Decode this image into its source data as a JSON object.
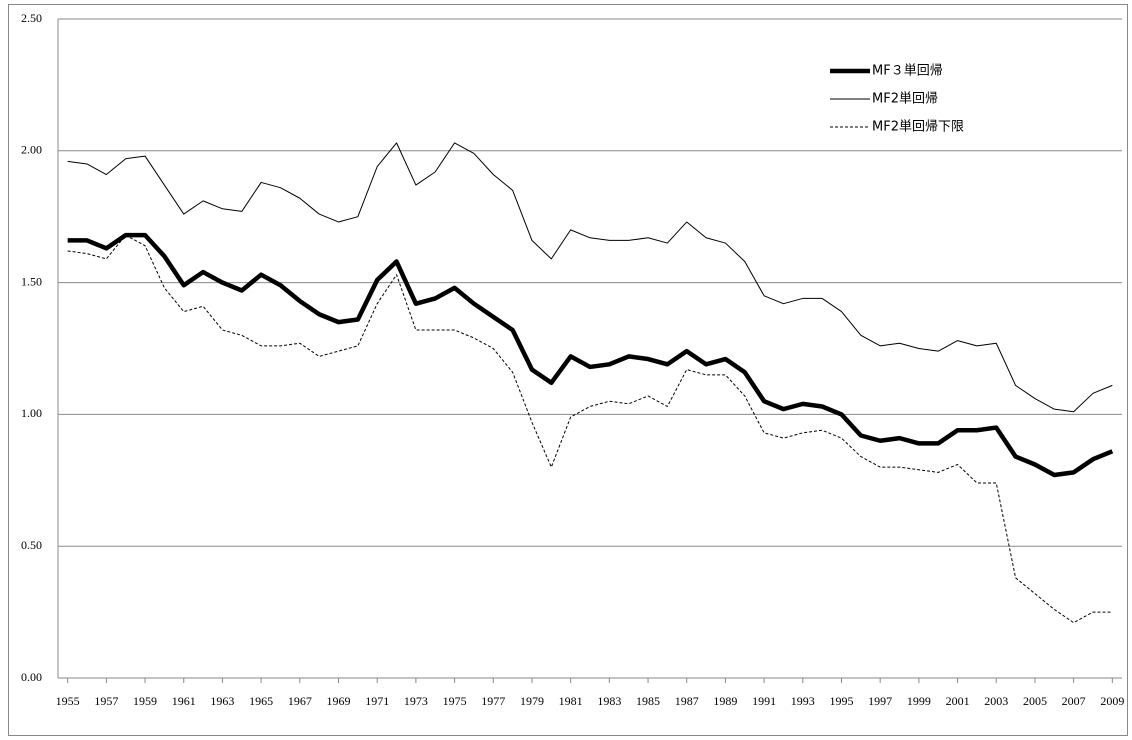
{
  "chart_data": {
    "type": "line",
    "x": [
      1955,
      1956,
      1957,
      1958,
      1959,
      1960,
      1961,
      1962,
      1963,
      1964,
      1965,
      1966,
      1967,
      1968,
      1969,
      1970,
      1971,
      1972,
      1973,
      1974,
      1975,
      1976,
      1977,
      1978,
      1979,
      1980,
      1981,
      1982,
      1983,
      1984,
      1985,
      1986,
      1987,
      1988,
      1989,
      1990,
      1991,
      1992,
      1993,
      1994,
      1995,
      1996,
      1997,
      1998,
      1999,
      2000,
      2001,
      2002,
      2003,
      2004,
      2005,
      2006,
      2007,
      2008,
      2009
    ],
    "series": [
      {
        "name": "MF３単回帰",
        "color": "#000000",
        "style": "thick",
        "values": [
          1.66,
          1.66,
          1.63,
          1.68,
          1.68,
          1.6,
          1.49,
          1.54,
          1.5,
          1.47,
          1.53,
          1.49,
          1.43,
          1.38,
          1.35,
          1.36,
          1.51,
          1.58,
          1.42,
          1.44,
          1.48,
          1.42,
          1.37,
          1.32,
          1.17,
          1.12,
          1.22,
          1.18,
          1.19,
          1.22,
          1.21,
          1.19,
          1.24,
          1.19,
          1.21,
          1.16,
          1.05,
          1.02,
          1.04,
          1.03,
          1.0,
          0.92,
          0.9,
          0.91,
          0.89,
          0.89,
          0.94,
          0.94,
          0.95,
          0.84,
          0.81,
          0.77,
          0.78,
          0.83,
          0.86
        ]
      },
      {
        "name": "MF2単回帰",
        "color": "#000000",
        "style": "solid",
        "values": [
          1.96,
          1.95,
          1.91,
          1.97,
          1.98,
          1.87,
          1.76,
          1.81,
          1.78,
          1.77,
          1.88,
          1.86,
          1.82,
          1.76,
          1.73,
          1.75,
          1.94,
          2.03,
          1.87,
          1.92,
          2.03,
          1.99,
          1.91,
          1.85,
          1.66,
          1.59,
          1.7,
          1.67,
          1.66,
          1.66,
          1.67,
          1.65,
          1.73,
          1.67,
          1.65,
          1.58,
          1.45,
          1.42,
          1.44,
          1.44,
          1.39,
          1.3,
          1.26,
          1.27,
          1.25,
          1.24,
          1.28,
          1.26,
          1.27,
          1.11,
          1.06,
          1.02,
          1.01,
          1.08,
          1.11
        ]
      },
      {
        "name": "MF2単回帰下限",
        "color": "#000000",
        "style": "dashed",
        "values": [
          1.62,
          1.61,
          1.59,
          1.68,
          1.64,
          1.48,
          1.39,
          1.41,
          1.32,
          1.3,
          1.26,
          1.26,
          1.27,
          1.22,
          1.24,
          1.26,
          1.42,
          1.53,
          1.32,
          1.32,
          1.32,
          1.29,
          1.25,
          1.16,
          0.97,
          0.8,
          0.99,
          1.03,
          1.05,
          1.04,
          1.07,
          1.03,
          1.17,
          1.15,
          1.15,
          1.07,
          0.93,
          0.91,
          0.93,
          0.94,
          0.91,
          0.84,
          0.8,
          0.8,
          0.79,
          0.78,
          0.81,
          0.74,
          0.74,
          0.38,
          0.32,
          0.26,
          0.21,
          0.25,
          0.25
        ]
      }
    ],
    "xlim": [
      1954.5,
      2009.5
    ],
    "xticks": [
      1955,
      1957,
      1959,
      1961,
      1963,
      1965,
      1967,
      1969,
      1971,
      1973,
      1975,
      1977,
      1979,
      1981,
      1983,
      1985,
      1987,
      1989,
      1991,
      1993,
      1995,
      1997,
      1999,
      2001,
      2003,
      2005,
      2007,
      2009
    ],
    "ylim": [
      0,
      2.5
    ],
    "yticks": [
      {
        "value": 0,
        "label": "0.00"
      },
      {
        "value": 0.5,
        "label": "0.50"
      },
      {
        "value": 1,
        "label": "1.00"
      },
      {
        "value": 1.5,
        "label": "1.50"
      },
      {
        "value": 2,
        "label": "2.00"
      },
      {
        "value": 2.5,
        "label": "2.50"
      }
    ],
    "grid": true,
    "legend": "upper-right"
  }
}
